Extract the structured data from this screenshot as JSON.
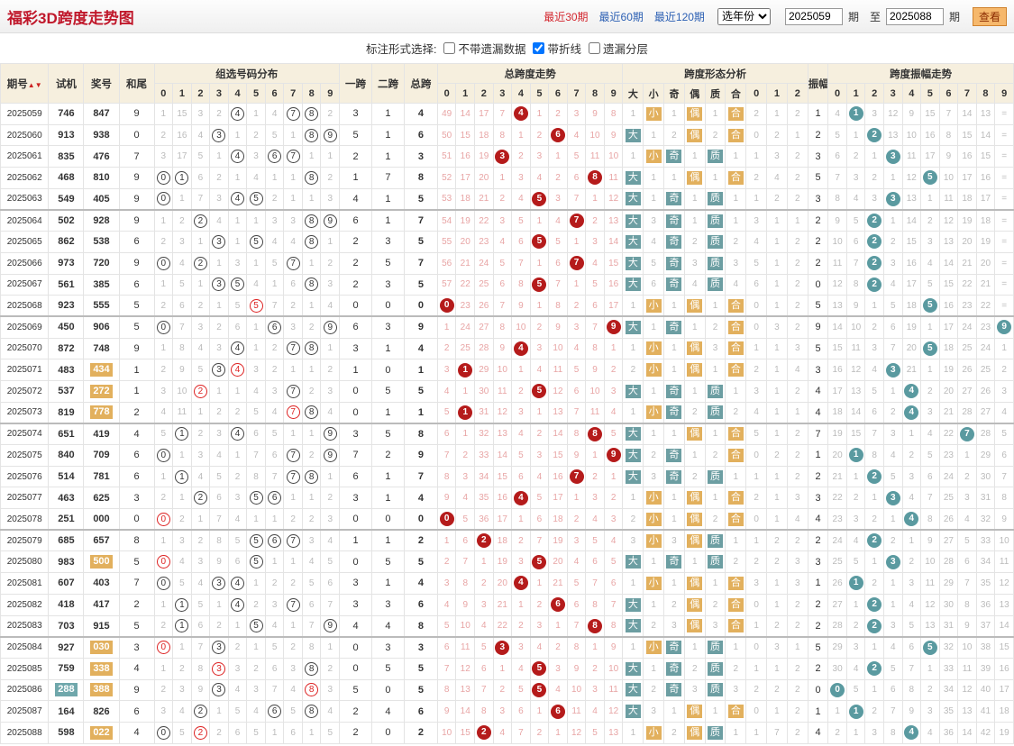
{
  "header": {
    "title": "福彩3D跨度走势图",
    "periods": [
      "最近30期",
      "最近60期",
      "最近120期"
    ],
    "year_select": "选年份",
    "from": "2025059",
    "from_unit": "期",
    "to_label": "至",
    "to": "2025088",
    "to_unit": "期",
    "view_btn": "查看"
  },
  "options": {
    "label": "标注形式选择:",
    "items": [
      {
        "text": "不带遗漏数据",
        "checked": false
      },
      {
        "text": "带折线",
        "checked": true
      },
      {
        "text": "遗漏分层",
        "checked": false
      }
    ]
  },
  "table": {
    "headers": {
      "issue": "期号",
      "sort_icon": "▲▼",
      "test": "试机",
      "prize": "奖号",
      "sum_tail": "和尾",
      "group_dist": "组选号码分布",
      "span1": "一跨",
      "span2": "二跨",
      "total_span": "总跨",
      "span_trend": "总跨度走势",
      "span_shape": "跨度形态分析",
      "amp": "振幅",
      "amp_trend": "跨度振幅走势",
      "shape_cols": [
        "大",
        "小",
        "奇",
        "偶",
        "质",
        "合",
        "0",
        "1",
        "2"
      ],
      "digits": [
        "0",
        "1",
        "2",
        "3",
        "4",
        "5",
        "6",
        "7",
        "8",
        "9"
      ]
    },
    "rows": [
      [
        "2025059",
        "746",
        "847",
        "9",
        "1 15 3 2 (4) 1 4 (7) (8) 2",
        "3",
        "1",
        "4",
        "49 14 17 7 [4] 1 2 3 9 8",
        "1",
        "小",
        "1",
        "偶",
        "1",
        "合",
        "2",
        "1",
        "2",
        "1",
        "4 {1} 3 12 9 15 7 14 13 ="
      ],
      [
        "2025060",
        "913",
        "938",
        "0",
        "2 16 4 (3) 1 2 5 1 (8) (9)",
        "5",
        "1",
        "6",
        "50 15 18 8 1 2 [6] 4 10 9",
        "大",
        "1",
        "2",
        "偶",
        "2",
        "合",
        "0",
        "2",
        "1",
        "2",
        "5 1 {2} 13 10 16 8 15 14 ="
      ],
      [
        "2025061",
        "835",
        "476",
        "7",
        "3 17 5 1 (4) 3 (6) (7) 1 1",
        "2",
        "1",
        "3",
        "51 16 19 [3] 2 3 1 5 11 10",
        "1",
        "小",
        "奇",
        "1",
        "质",
        "1",
        "1",
        "3",
        "2",
        "3",
        "6 2 1 {3} 11 17 9 16 15 ="
      ],
      [
        "2025062",
        "468",
        "810",
        "9",
        "(0) (1) 6 2 1 4 1 1 (8) 2",
        "1",
        "7",
        "8",
        "52 17 20 1 3 4 2 6 [8] 11",
        "大",
        "1",
        "1",
        "偶",
        "1",
        "合",
        "2",
        "4",
        "2",
        "5",
        "7 3 2 1 12 {5} 10 17 16 ="
      ],
      [
        "2025063",
        "549",
        "405",
        "9",
        "(0) 1 7 3 (4) (5) 2 1 1 3",
        "4",
        "1",
        "5",
        "53 18 21 2 4 [5] 3 7 1 12",
        "大",
        "1",
        "奇",
        "1",
        "质",
        "1",
        "1",
        "2",
        "2",
        "3",
        "8 4 3 {3} 13 1 11 18 17 ="
      ],
      [
        "2025064",
        "502",
        "928",
        "9",
        "1 2 (2) 4 1 1 3 3 (8) (9)",
        "6",
        "1",
        "7",
        "54 19 22 3 5 1 4 [7] 2 13",
        "大",
        "3",
        "奇",
        "1",
        "质",
        "1",
        "3",
        "1",
        "1",
        "2",
        "9 5 {2} 1 14 2 12 19 18 ="
      ],
      [
        "2025065",
        "862",
        "538",
        "6",
        "2 3 1 (3) 1 (5) 4 4 (8) 1",
        "2",
        "3",
        "5",
        "55 20 23 4 6 [5] 5 1 3 14",
        "大",
        "4",
        "奇",
        "2",
        "质",
        "2",
        "4",
        "1",
        "2",
        "2",
        "10 6 {2} 2 15 3 13 20 19 ="
      ],
      [
        "2025066",
        "973",
        "720",
        "9",
        "(0) 4 (2) 1 3 1 5 (7) 1 2",
        "2",
        "5",
        "7",
        "56 21 24 5 7 1 6 [7] 4 15",
        "大",
        "5",
        "奇",
        "3",
        "质",
        "3",
        "5",
        "1",
        "2",
        "2",
        "11 7 {2} 3 16 4 14 21 20 ="
      ],
      [
        "2025067",
        "561",
        "385",
        "6",
        "1 5 1 (3) (5) 4 1 6 (8) 3",
        "2",
        "3",
        "5",
        "57 22 25 6 8 [5] 7 1 5 16",
        "大",
        "6",
        "奇",
        "4",
        "质",
        "4",
        "6",
        "1",
        "2",
        "0",
        "12 8 {2} 4 17 5 15 22 21 ="
      ],
      [
        "2025068",
        "923",
        "555",
        "5",
        "2 6 2 1 5 [5] 7 2 1 4",
        "0",
        "0",
        "0",
        "[0] 23 26 7 9 1 8 2 6 17",
        "1",
        "小",
        "1",
        "偶",
        "1",
        "合",
        "0",
        "1",
        "2",
        "5",
        "13 9 1 5 18 {5} 16 23 22 ="
      ],
      [
        "2025069",
        "450",
        "906",
        "5",
        "(0) 7 3 2 6 1 (6) 3 2 (9)",
        "6",
        "3",
        "9",
        "1 24 27 8 10 2 9 3 7 [9]",
        "大",
        "1",
        "奇",
        "1",
        "2",
        "合",
        "0",
        "3",
        "2",
        "9",
        "14 10 2 6 19 1 17 24 23 {9}"
      ],
      [
        "2025070",
        "872",
        "748",
        "9",
        "1 8 4 3 (4) 1 2 (7) (8) 1",
        "3",
        "1",
        "4",
        "2 25 28 9 [4] 3 10 4 8 1",
        "1",
        "小",
        "1",
        "偶",
        "3",
        "合",
        "1",
        "1",
        "3",
        "5",
        "15 11 3 7 20 {5} 18 25 24 1"
      ],
      [
        "2025071",
        "483",
        "434",
        "1",
        "2 9 5 (3) [4] 3 2 1 1 2",
        "1",
        "0",
        "1",
        "3 [1] 29 10 1 4 11 5 9 2",
        "2",
        "小",
        "1",
        "偶",
        "1",
        "合",
        "2",
        "1",
        "4",
        "3",
        "16 12 4 {3} 21 1 19 26 25 2"
      ],
      [
        "2025072",
        "537",
        "272",
        "1",
        "3 10 [2] 1 1 4 3 (7) 2 3",
        "0",
        "5",
        "5",
        "4 1 30 11 2 [5] 12 6 10 3",
        "大",
        "1",
        "奇",
        "1",
        "质",
        "1",
        "3",
        "1",
        "2",
        "4",
        "17 13 5 1 {4} 2 20 27 26 3"
      ],
      [
        "2025073",
        "819",
        "778",
        "2",
        "4 11 1 2 2 5 4 [7] (8) 4",
        "0",
        "1",
        "1",
        "5 [1] 31 12 3 1 13 7 11 4",
        "1",
        "小",
        "奇",
        "2",
        "质",
        "2",
        "4",
        "1",
        "1",
        "4",
        "18 14 6 2 {4} 3 21 28 27 4"
      ],
      [
        "2025074",
        "651",
        "419",
        "4",
        "5 (1) 2 3 (4) 6 5 1 1 (9)",
        "3",
        "5",
        "8",
        "6 1 32 13 4 2 14 8 [8] 5",
        "大",
        "1",
        "1",
        "偶",
        "1",
        "合",
        "5",
        "1",
        "2",
        "7",
        "19 15 7 3 1 4 22 {7} 28 5"
      ],
      [
        "2025075",
        "840",
        "709",
        "6",
        "(0) 1 3 4 1 7 6 (7) 2 (9)",
        "7",
        "2",
        "9",
        "7 2 33 14 5 3 15 9 1 [9]",
        "大",
        "2",
        "奇",
        "1",
        "2",
        "合",
        "0",
        "2",
        "2",
        "1",
        "20 {1} 8 4 2 5 23 1 29 6"
      ],
      [
        "2025076",
        "514",
        "781",
        "6",
        "1 (1) 4 5 2 8 7 (7) (8) 1",
        "6",
        "1",
        "7",
        "8 3 34 15 6 4 16 [7] 2 1",
        "大",
        "3",
        "奇",
        "2",
        "质",
        "1",
        "1",
        "1",
        "2",
        "2",
        "21 1 {2} 5 3 6 24 2 30 7"
      ],
      [
        "2025077",
        "463",
        "625",
        "3",
        "2 1 (2) 6 3 (5) (6) 1 1 2",
        "3",
        "1",
        "4",
        "9 4 35 16 [4] 5 17 1 3 2",
        "1",
        "小",
        "1",
        "偶",
        "1",
        "合",
        "2",
        "1",
        "3",
        "3",
        "22 2 1 {3} 4 7 25 3 31 8"
      ],
      [
        "2025078",
        "251",
        "000",
        "0",
        "[0] 2 1 7 4 1 1 2 2 3",
        "0",
        "0",
        "0",
        "[0] 5 36 17 1 6 18 2 4 3",
        "2",
        "小",
        "1",
        "偶",
        "2",
        "合",
        "0",
        "1",
        "4",
        "4",
        "23 3 2 1 {4} 8 26 4 32 9"
      ],
      [
        "2025079",
        "685",
        "657",
        "8",
        "1 3 2 8 5 (5) (6) (7) 3 4",
        "1",
        "1",
        "2",
        "1 6 [2] 18 2 7 19 3 5 4",
        "3",
        "小",
        "3",
        "偶",
        "质",
        "1",
        "1",
        "2",
        "2",
        "2",
        "24 4 {2} 2 1 9 27 5 33 10"
      ],
      [
        "2025080",
        "983",
        "500",
        "5",
        "[0] 4 3 9 6 (5) 1 1 4 5",
        "0",
        "5",
        "5",
        "2 7 1 19 3 [5] 20 4 6 5",
        "大",
        "1",
        "奇",
        "1",
        "质",
        "2",
        "2",
        "2",
        "3",
        "3",
        "25 5 1 {3} 2 10 28 6 34 11"
      ],
      [
        "2025081",
        "607",
        "403",
        "7",
        "(0) 5 4 (3) (4) 1 2 2 5 6",
        "3",
        "1",
        "4",
        "3 8 2 20 [4] 1 21 5 7 6",
        "1",
        "小",
        "1",
        "偶",
        "1",
        "合",
        "3",
        "1",
        "3",
        "1",
        "26 {1} 2 1 3 11 29 7 35 12"
      ],
      [
        "2025082",
        "418",
        "417",
        "2",
        "1 (1) 5 1 (4) 2 3 (7) 6 7",
        "3",
        "3",
        "6",
        "4 9 3 21 1 2 [6] 6 8 7",
        "大",
        "1",
        "2",
        "偶",
        "2",
        "合",
        "0",
        "1",
        "2",
        "2",
        "27 1 {2} 1 4 12 30 8 36 13"
      ],
      [
        "2025083",
        "703",
        "915",
        "5",
        "2 (1) 6 2 1 (5) 4 1 7 (9)",
        "4",
        "4",
        "8",
        "5 10 4 22 2 3 1 7 [8] 8",
        "大",
        "2",
        "3",
        "偶",
        "3",
        "合",
        "1",
        "2",
        "2",
        "2",
        "28 2 {2} 3 5 13 31 9 37 14"
      ],
      [
        "2025084",
        "927",
        "030",
        "3",
        "[0] 1 7 (3) 2 1 5 2 8 1",
        "0",
        "3",
        "3",
        "6 11 5 [3] 3 4 2 8 1 9",
        "1",
        "小",
        "奇",
        "1",
        "质",
        "1",
        "0",
        "3",
        "1",
        "5",
        "29 3 1 4 6 {5} 32 10 38 15"
      ],
      [
        "2025085",
        "759",
        "338",
        "4",
        "1 2 8 [3] 3 2 6 3 (8) 2",
        "0",
        "5",
        "5",
        "7 12 6 1 4 [5] 3 9 2 10",
        "大",
        "1",
        "奇",
        "2",
        "质",
        "2",
        "1",
        "1",
        "2",
        "2",
        "30 4 {2} 5 7 1 33 11 39 16"
      ],
      [
        "2025086",
        "288",
        "388",
        "9",
        "2 3 9 (3) 4 3 7 4 [8] 3",
        "5",
        "0",
        "5",
        "8 13 7 2 5 [5] 4 10 3 11",
        "大",
        "2",
        "奇",
        "3",
        "质",
        "3",
        "2",
        "2",
        "2",
        "0",
        "{0} 5 1 6 8 2 34 12 40 17"
      ],
      [
        "2025087",
        "164",
        "826",
        "6",
        "3 4 (2) 1 5 4 (6) 5 (8) 4",
        "2",
        "4",
        "6",
        "9 14 8 3 6 1 [6] 11 4 12",
        "大",
        "3",
        "1",
        "偶",
        "1",
        "合",
        "0",
        "1",
        "2",
        "1",
        "1 {1} 2 7 9 3 35 13 41 18"
      ],
      [
        "2025088",
        "598",
        "022",
        "4",
        "(0) 5 [2] 2 6 5 1 6 1 5",
        "2",
        "0",
        "2",
        "10 15 [2] 4 7 2 1 12 5 13",
        "1",
        "小",
        "2",
        "偶",
        "质",
        "1",
        "1",
        "7",
        "2",
        "4",
        "2 1 3 8 {4} 4 36 14 42 19"
      ]
    ],
    "test_highlight": {
      "2025086": "288"
    },
    "prize_highlight": [
      "2025071",
      "2025072",
      "2025073",
      "2025080",
      "2025084",
      "2025085",
      "2025086",
      "2025088"
    ]
  }
}
